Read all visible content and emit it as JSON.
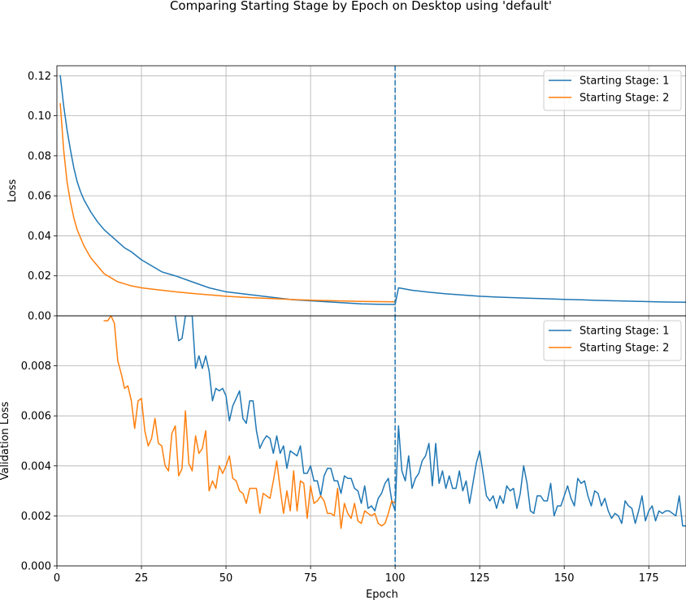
{
  "figure": {
    "title": "Comparing Starting Stage by Epoch on Desktop using 'default'"
  },
  "chart_data": [
    {
      "type": "line",
      "name": "loss-panel",
      "title": "",
      "xlabel": "",
      "ylabel": "Loss",
      "xlim": [
        0,
        186
      ],
      "ylim": [
        0,
        0.125
      ],
      "xticks": [
        0,
        25,
        50,
        75,
        100,
        125,
        150,
        175
      ],
      "yticks": [
        0.0,
        0.02,
        0.04,
        0.06,
        0.08,
        0.1,
        0.12
      ],
      "ytick_labels": [
        "0.00",
        "0.02",
        "0.04",
        "0.06",
        "0.08",
        "0.10",
        "0.12"
      ],
      "grid": true,
      "legend": "upper right",
      "vline_x": 100,
      "series": [
        {
          "name": "Starting Stage: 1",
          "color": "#1f77b4",
          "x": [
            1,
            2,
            3,
            4,
            5,
            6,
            7,
            8,
            9,
            10,
            12,
            14,
            16,
            18,
            20,
            22,
            25,
            28,
            31,
            35,
            40,
            45,
            50,
            55,
            60,
            65,
            70,
            75,
            80,
            85,
            90,
            95,
            100,
            101,
            105,
            110,
            115,
            120,
            125,
            130,
            135,
            140,
            145,
            150,
            155,
            160,
            165,
            170,
            175,
            180,
            186
          ],
          "y": [
            0.12,
            0.105,
            0.093,
            0.083,
            0.074,
            0.067,
            0.062,
            0.058,
            0.055,
            0.052,
            0.047,
            0.043,
            0.04,
            0.037,
            0.034,
            0.032,
            0.028,
            0.025,
            0.022,
            0.02,
            0.017,
            0.014,
            0.012,
            0.011,
            0.01,
            0.009,
            0.008,
            0.0075,
            0.007,
            0.0065,
            0.006,
            0.0058,
            0.0057,
            0.014,
            0.0128,
            0.0118,
            0.011,
            0.0104,
            0.0098,
            0.0094,
            0.0091,
            0.0088,
            0.0085,
            0.0082,
            0.008,
            0.0077,
            0.0075,
            0.0073,
            0.0071,
            0.0069,
            0.0068
          ]
        },
        {
          "name": "Starting Stage: 2",
          "color": "#ff7f0e",
          "x": [
            1,
            2,
            3,
            4,
            5,
            6,
            7,
            8,
            9,
            10,
            12,
            14,
            16,
            18,
            20,
            22,
            25,
            30,
            35,
            40,
            45,
            50,
            55,
            60,
            65,
            70,
            75,
            80,
            85,
            90,
            95,
            100
          ],
          "y": [
            0.106,
            0.083,
            0.067,
            0.057,
            0.049,
            0.043,
            0.039,
            0.035,
            0.032,
            0.029,
            0.025,
            0.021,
            0.019,
            0.017,
            0.016,
            0.015,
            0.014,
            0.013,
            0.012,
            0.0112,
            0.0105,
            0.0098,
            0.0093,
            0.0089,
            0.0085,
            0.0081,
            0.0078,
            0.0076,
            0.0074,
            0.0072,
            0.0071,
            0.007
          ]
        }
      ]
    },
    {
      "type": "line",
      "name": "validation-panel",
      "title": "",
      "xlabel": "Epoch",
      "ylabel": "Validation Loss",
      "xlim": [
        0,
        186
      ],
      "ylim": [
        0,
        0.01
      ],
      "xticks": [
        0,
        25,
        50,
        75,
        100,
        125,
        150,
        175
      ],
      "yticks": [
        0.0,
        0.002,
        0.004,
        0.006,
        0.008
      ],
      "ytick_labels": [
        "0.000",
        "0.002",
        "0.004",
        "0.006",
        "0.008"
      ],
      "grid": true,
      "legend": "upper right",
      "vline_x": 100,
      "series": [
        {
          "name": "Starting Stage: 1",
          "color": "#1f77b4",
          "x": [
            35,
            36,
            37,
            38,
            39,
            40,
            41,
            42,
            43,
            44,
            45,
            46,
            47,
            48,
            49,
            50,
            51,
            52,
            53,
            54,
            55,
            56,
            57,
            58,
            59,
            60,
            61,
            62,
            63,
            64,
            65,
            66,
            67,
            68,
            69,
            70,
            71,
            72,
            73,
            74,
            75,
            76,
            77,
            78,
            79,
            80,
            81,
            82,
            83,
            84,
            85,
            86,
            87,
            88,
            89,
            90,
            91,
            92,
            93,
            94,
            95,
            96,
            97,
            98,
            99,
            100,
            101,
            102,
            103,
            104,
            105,
            106,
            107,
            108,
            109,
            110,
            111,
            112,
            113,
            114,
            115,
            116,
            117,
            118,
            119,
            120,
            121,
            122,
            123,
            124,
            125,
            126,
            127,
            128,
            129,
            130,
            131,
            132,
            133,
            134,
            135,
            136,
            137,
            138,
            139,
            140,
            141,
            142,
            143,
            144,
            145,
            146,
            147,
            148,
            149,
            150,
            151,
            152,
            153,
            154,
            155,
            156,
            157,
            158,
            159,
            160,
            161,
            162,
            163,
            164,
            165,
            166,
            167,
            168,
            169,
            170,
            171,
            172,
            173,
            174,
            175,
            176,
            177,
            178,
            179,
            180,
            181,
            182,
            183,
            184,
            185,
            186
          ],
          "y": [
            0.01,
            0.009,
            0.0091,
            0.01,
            0.01,
            0.01,
            0.0079,
            0.0084,
            0.0079,
            0.0084,
            0.0078,
            0.0066,
            0.0071,
            0.007,
            0.0071,
            0.0068,
            0.0058,
            0.0064,
            0.0067,
            0.007,
            0.0059,
            0.0057,
            0.0066,
            0.0066,
            0.0054,
            0.0047,
            0.005,
            0.0052,
            0.0051,
            0.0045,
            0.0052,
            0.0045,
            0.0048,
            0.0039,
            0.0046,
            0.0045,
            0.0044,
            0.0048,
            0.0037,
            0.0037,
            0.004,
            0.0034,
            0.0034,
            0.0028,
            0.0036,
            0.0039,
            0.0039,
            0.0034,
            0.0034,
            0.0029,
            0.0036,
            0.0035,
            0.0035,
            0.0031,
            0.003,
            0.0025,
            0.0032,
            0.0023,
            0.0024,
            0.0022,
            0.0027,
            0.0029,
            0.0033,
            0.0035,
            0.0026,
            0.0022,
            0.0056,
            0.0038,
            0.0034,
            0.0044,
            0.0031,
            0.0035,
            0.0037,
            0.0042,
            0.0044,
            0.0049,
            0.0032,
            0.0049,
            0.0033,
            0.0038,
            0.0031,
            0.0036,
            0.0031,
            0.0031,
            0.0038,
            0.003,
            0.0034,
            0.0025,
            0.0033,
            0.0041,
            0.0046,
            0.0037,
            0.0028,
            0.0026,
            0.0028,
            0.0023,
            0.0028,
            0.0025,
            0.0032,
            0.003,
            0.0031,
            0.0023,
            0.0029,
            0.004,
            0.0033,
            0.0022,
            0.0021,
            0.0028,
            0.0028,
            0.0026,
            0.0026,
            0.0033,
            0.002,
            0.0024,
            0.0024,
            0.0028,
            0.0032,
            0.0027,
            0.0024,
            0.0035,
            0.0033,
            0.0034,
            0.0028,
            0.0024,
            0.003,
            0.0029,
            0.0024,
            0.0027,
            0.0022,
            0.0019,
            0.0021,
            0.002,
            0.0017,
            0.0026,
            0.0024,
            0.0023,
            0.0017,
            0.0022,
            0.0028,
            0.0018,
            0.0022,
            0.0024,
            0.0018,
            0.0022,
            0.0021,
            0.0022,
            0.0022,
            0.0021,
            0.002,
            0.0028,
            0.0016,
            0.0016
          ]
        },
        {
          "name": "Starting Stage: 2",
          "color": "#ff7f0e",
          "x": [
            14,
            15,
            16,
            17,
            18,
            19,
            20,
            21,
            22,
            23,
            24,
            25,
            26,
            27,
            28,
            29,
            30,
            31,
            32,
            33,
            34,
            35,
            36,
            37,
            38,
            39,
            40,
            41,
            42,
            43,
            44,
            45,
            46,
            47,
            48,
            49,
            50,
            51,
            52,
            53,
            54,
            55,
            56,
            57,
            58,
            59,
            60,
            61,
            62,
            63,
            64,
            65,
            66,
            67,
            68,
            69,
            70,
            71,
            72,
            73,
            74,
            75,
            76,
            77,
            78,
            79,
            80,
            81,
            82,
            83,
            84,
            85,
            86,
            87,
            88,
            89,
            90,
            91,
            92,
            93,
            94,
            95,
            96,
            97,
            98,
            99,
            100
          ],
          "y": [
            0.0098,
            0.0098,
            0.01,
            0.0097,
            0.0082,
            0.0077,
            0.0071,
            0.0072,
            0.0066,
            0.0055,
            0.0066,
            0.0067,
            0.0054,
            0.0048,
            0.0051,
            0.0059,
            0.0049,
            0.0048,
            0.004,
            0.0038,
            0.0053,
            0.0056,
            0.0036,
            0.0039,
            0.0062,
            0.0041,
            0.0038,
            0.0052,
            0.0045,
            0.0047,
            0.0054,
            0.003,
            0.0034,
            0.0031,
            0.004,
            0.0037,
            0.004,
            0.0044,
            0.0035,
            0.0034,
            0.003,
            0.0029,
            0.0025,
            0.0031,
            0.0031,
            0.0031,
            0.0021,
            0.0029,
            0.0028,
            0.0027,
            0.0034,
            0.0042,
            0.0031,
            0.0021,
            0.003,
            0.0022,
            0.0038,
            0.0022,
            0.0034,
            0.0033,
            0.0019,
            0.0032,
            0.0025,
            0.0026,
            0.0028,
            0.0026,
            0.0021,
            0.0021,
            0.002,
            0.0031,
            0.0015,
            0.0025,
            0.0021,
            0.0019,
            0.0025,
            0.0018,
            0.0017,
            0.0022,
            0.0021,
            0.002,
            0.0021,
            0.0017,
            0.0016,
            0.0017,
            0.0021,
            0.0026,
            0.0025
          ]
        }
      ]
    }
  ]
}
